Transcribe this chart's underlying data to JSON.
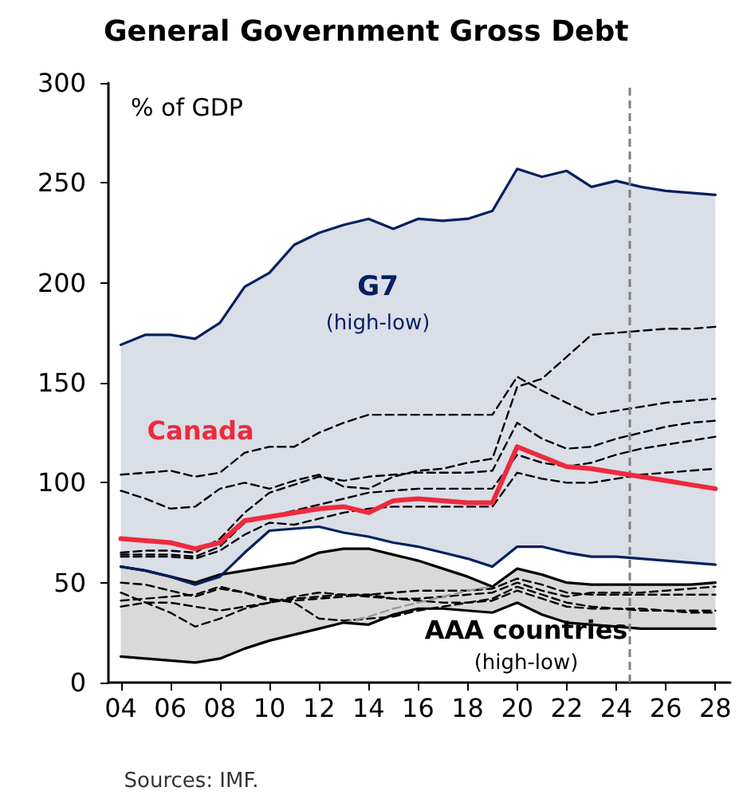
{
  "chart_data": {
    "type": "line",
    "title": "General Government Gross Debt",
    "ylabel": "% of GDP",
    "x": [
      2004,
      2005,
      2006,
      2007,
      2008,
      2009,
      2010,
      2011,
      2012,
      2013,
      2014,
      2015,
      2016,
      2017,
      2018,
      2019,
      2020,
      2021,
      2022,
      2023,
      2024,
      2025,
      2026,
      2027,
      2028
    ],
    "xlim": [
      2003.5,
      2028.6
    ],
    "xticks": [
      {
        "value": 2004,
        "label": "04"
      },
      {
        "value": 2006,
        "label": "06"
      },
      {
        "value": 2008,
        "label": "08"
      },
      {
        "value": 2010,
        "label": "10"
      },
      {
        "value": 2012,
        "label": "12"
      },
      {
        "value": 2014,
        "label": "14"
      },
      {
        "value": 2016,
        "label": "16"
      },
      {
        "value": 2018,
        "label": "18"
      },
      {
        "value": 2020,
        "label": "20"
      },
      {
        "value": 2022,
        "label": "22"
      },
      {
        "value": 2024,
        "label": "24"
      },
      {
        "value": 2026,
        "label": "26"
      },
      {
        "value": 2028,
        "label": "28"
      }
    ],
    "ylim": [
      0,
      300
    ],
    "yticks": [
      0,
      50,
      100,
      150,
      200,
      250,
      300
    ],
    "grid": false,
    "legend": false,
    "series": [
      {
        "color": "#000000",
        "line_style": "dashed",
        "values": [
          50,
          49,
          46,
          43,
          47,
          45,
          42,
          40,
          32,
          31,
          32,
          33,
          36,
          38,
          40,
          42,
          48,
          44,
          40,
          38,
          37,
          36,
          36,
          35,
          35
        ]
      },
      {
        "color": "#000000",
        "line_style": "dashed",
        "values": [
          45,
          40,
          35,
          28,
          32,
          37,
          40,
          43,
          45,
          44,
          44,
          42,
          41,
          40,
          40,
          41,
          46,
          42,
          38,
          37,
          37,
          37,
          36,
          36,
          36
        ]
      },
      {
        "color": "#000000",
        "line_style": "dashed",
        "values": [
          41,
          42,
          43,
          44,
          48,
          45,
          41,
          41,
          42,
          43,
          44,
          45,
          46,
          46,
          46,
          47,
          52,
          49,
          45,
          44,
          44,
          44,
          44,
          44,
          44
        ]
      },
      {
        "color": "#000000",
        "line_style": "dashed",
        "values": [
          38,
          40,
          40,
          38,
          36,
          38,
          40,
          42,
          43,
          44,
          43,
          42,
          42,
          43,
          44,
          45,
          50,
          46,
          43,
          45,
          45,
          45,
          46,
          47,
          48
        ]
      },
      {
        "color": "#999999",
        "line_style": "dashed",
        "values": [
          null,
          null,
          null,
          null,
          null,
          null,
          null,
          null,
          null,
          30,
          33,
          37,
          40,
          43,
          46,
          48,
          null,
          null,
          null,
          null,
          null,
          null,
          null,
          null,
          null
        ]
      },
      {
        "color": "#000000",
        "line_style": "solid",
        "values": [
          58,
          56,
          53,
          50,
          54,
          56,
          58,
          60,
          65,
          67,
          67,
          64,
          61,
          57,
          53,
          48,
          57,
          54,
          50,
          49,
          49,
          49,
          49,
          49,
          50
        ],
        "upper": [
          58,
          56,
          53,
          50,
          54,
          56,
          58,
          60,
          65,
          67,
          67,
          64,
          61,
          57,
          53,
          48,
          57,
          54,
          50,
          49,
          49,
          49,
          49,
          49,
          50
        ],
        "lower": [
          13,
          12,
          11,
          10,
          12,
          17,
          21,
          24,
          27,
          30,
          29,
          34,
          37,
          37,
          36,
          35,
          40,
          34,
          30,
          29,
          28,
          27,
          27,
          27,
          27
        ]
      },
      {
        "color": "#000000",
        "line_style": "solid",
        "values": [
          13,
          12,
          11,
          10,
          12,
          17,
          21,
          24,
          27,
          30,
          29,
          34,
          37,
          37,
          36,
          35,
          40,
          34,
          30,
          29,
          28,
          27,
          27,
          27,
          27
        ]
      },
      {
        "color": "#000000",
        "line_style": "dashed",
        "values": [
          104,
          105,
          106,
          103,
          105,
          115,
          118,
          118,
          125,
          130,
          134,
          134,
          134,
          134,
          134,
          134,
          153,
          146,
          140,
          134,
          136,
          138,
          140,
          141,
          142
        ]
      },
      {
        "color": "#000000",
        "line_style": "dashed",
        "values": [
          96,
          92,
          87,
          88,
          97,
          100,
          97,
          101,
          104,
          98,
          97,
          103,
          106,
          107,
          110,
          112,
          148,
          152,
          163,
          174,
          175,
          176,
          177,
          177,
          178
        ]
      },
      {
        "color": "#000000",
        "line_style": "dashed",
        "values": [
          65,
          66,
          66,
          65,
          72,
          85,
          95,
          99,
          103,
          101,
          103,
          104,
          105,
          105,
          105,
          106,
          130,
          122,
          117,
          118,
          122,
          125,
          128,
          130,
          131
        ]
      },
      {
        "color": "#000000",
        "line_style": "dashed",
        "values": [
          64,
          64,
          64,
          63,
          68,
          80,
          83,
          86,
          89,
          92,
          95,
          96,
          97,
          97,
          97,
          97,
          114,
          110,
          108,
          110,
          114,
          117,
          119,
          121,
          123
        ]
      },
      {
        "color": "#000000",
        "line_style": "dashed",
        "values": [
          63,
          63,
          63,
          62,
          66,
          74,
          80,
          79,
          82,
          85,
          87,
          88,
          88,
          88,
          88,
          88,
          105,
          102,
          100,
          100,
          102,
          104,
          105,
          106,
          107
        ]
      },
      {
        "color": "#002060",
        "line_style": "solid",
        "values": [
          58,
          56,
          53,
          49,
          53,
          65,
          76,
          77,
          78,
          75,
          73,
          70,
          68,
          65,
          62,
          58,
          68,
          68,
          65,
          63,
          63,
          62,
          61,
          60,
          59
        ]
      },
      {
        "color": "#002060",
        "line_style": "solid",
        "values": [
          169,
          174,
          174,
          172,
          180,
          198,
          205,
          219,
          225,
          229,
          232,
          227,
          232,
          231,
          232,
          236,
          257,
          253,
          256,
          248,
          251,
          248,
          246,
          245,
          244
        ],
        "upper": [
          169,
          174,
          174,
          172,
          180,
          198,
          205,
          219,
          225,
          229,
          232,
          227,
          232,
          231,
          232,
          236,
          257,
          253,
          256,
          248,
          251,
          248,
          246,
          245,
          244
        ],
        "lower": [
          58,
          56,
          53,
          49,
          53,
          65,
          76,
          77,
          78,
          75,
          73,
          70,
          68,
          65,
          62,
          58,
          68,
          68,
          65,
          63,
          63,
          62,
          61,
          60,
          59
        ]
      },
      {
        "name": "Canada",
        "color": "#ee2a3d",
        "line_style": "solid",
        "values": [
          72,
          71,
          70,
          67,
          70,
          81,
          83,
          85,
          87,
          88,
          85,
          91,
          92,
          91,
          90,
          90,
          118,
          113,
          108,
          107,
          105,
          103,
          101,
          99,
          97
        ]
      }
    ],
    "ref_lines": [
      {
        "axis": "x",
        "value": 2024.5,
        "color": "#808080",
        "line_style": "dashed"
      }
    ],
    "annotations": [
      "G7",
      "(high-low)",
      "AAA countries",
      "(high-low)",
      "Sources: IMF."
    ]
  }
}
